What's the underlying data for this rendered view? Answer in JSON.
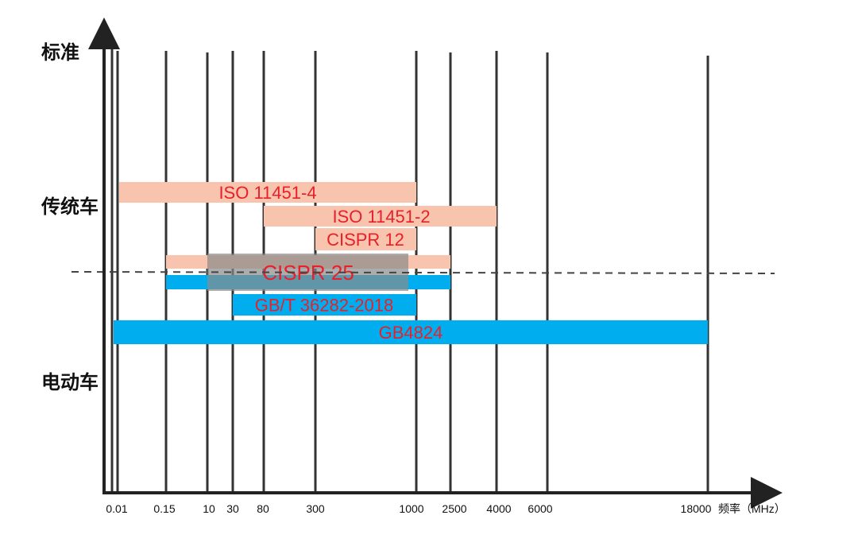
{
  "chart_data": {
    "type": "bar",
    "orientation": "horizontal-range",
    "title": "",
    "ylabel": "标准",
    "xlabel": "频率（MHz）",
    "x_ticks": [
      "0.01",
      "0.15",
      "10",
      "30",
      "80",
      "300",
      "1000",
      "2500",
      "4000",
      "6000",
      "18000"
    ],
    "categories": [
      "传统车",
      "电动车"
    ],
    "divider": "dashed",
    "grid": true,
    "series": [
      {
        "name": "ISO 11451-4",
        "group": "传统车",
        "start": "0.01",
        "end": "1000",
        "color": "#f8c4ad",
        "label_color": "#e8202a"
      },
      {
        "name": "ISO 11451-2",
        "group": "传统车",
        "start": "80",
        "end": "4000",
        "color": "#f8c4ad",
        "label_color": "#e8202a"
      },
      {
        "name": "CISPR 12",
        "group": "传统车",
        "start": "300",
        "end": "1000",
        "color": "#f8c4ad",
        "label_color": "#e8202a"
      },
      {
        "name": "CISPR 25",
        "group": "传统车/电动车",
        "start": "0.15",
        "end": "2500",
        "color": "#f8c4ad",
        "label_color": "#e8202a"
      },
      {
        "name": "GB/T 36282-2018",
        "group": "电动车",
        "start": "30",
        "end": "1000",
        "color": "#00aeef",
        "label_color": "#e8202a"
      },
      {
        "name": "GB4824",
        "group": "电动车",
        "start": "0.01",
        "end": "18000",
        "color": "#00aeef",
        "label_color": "#e8202a"
      }
    ]
  }
}
